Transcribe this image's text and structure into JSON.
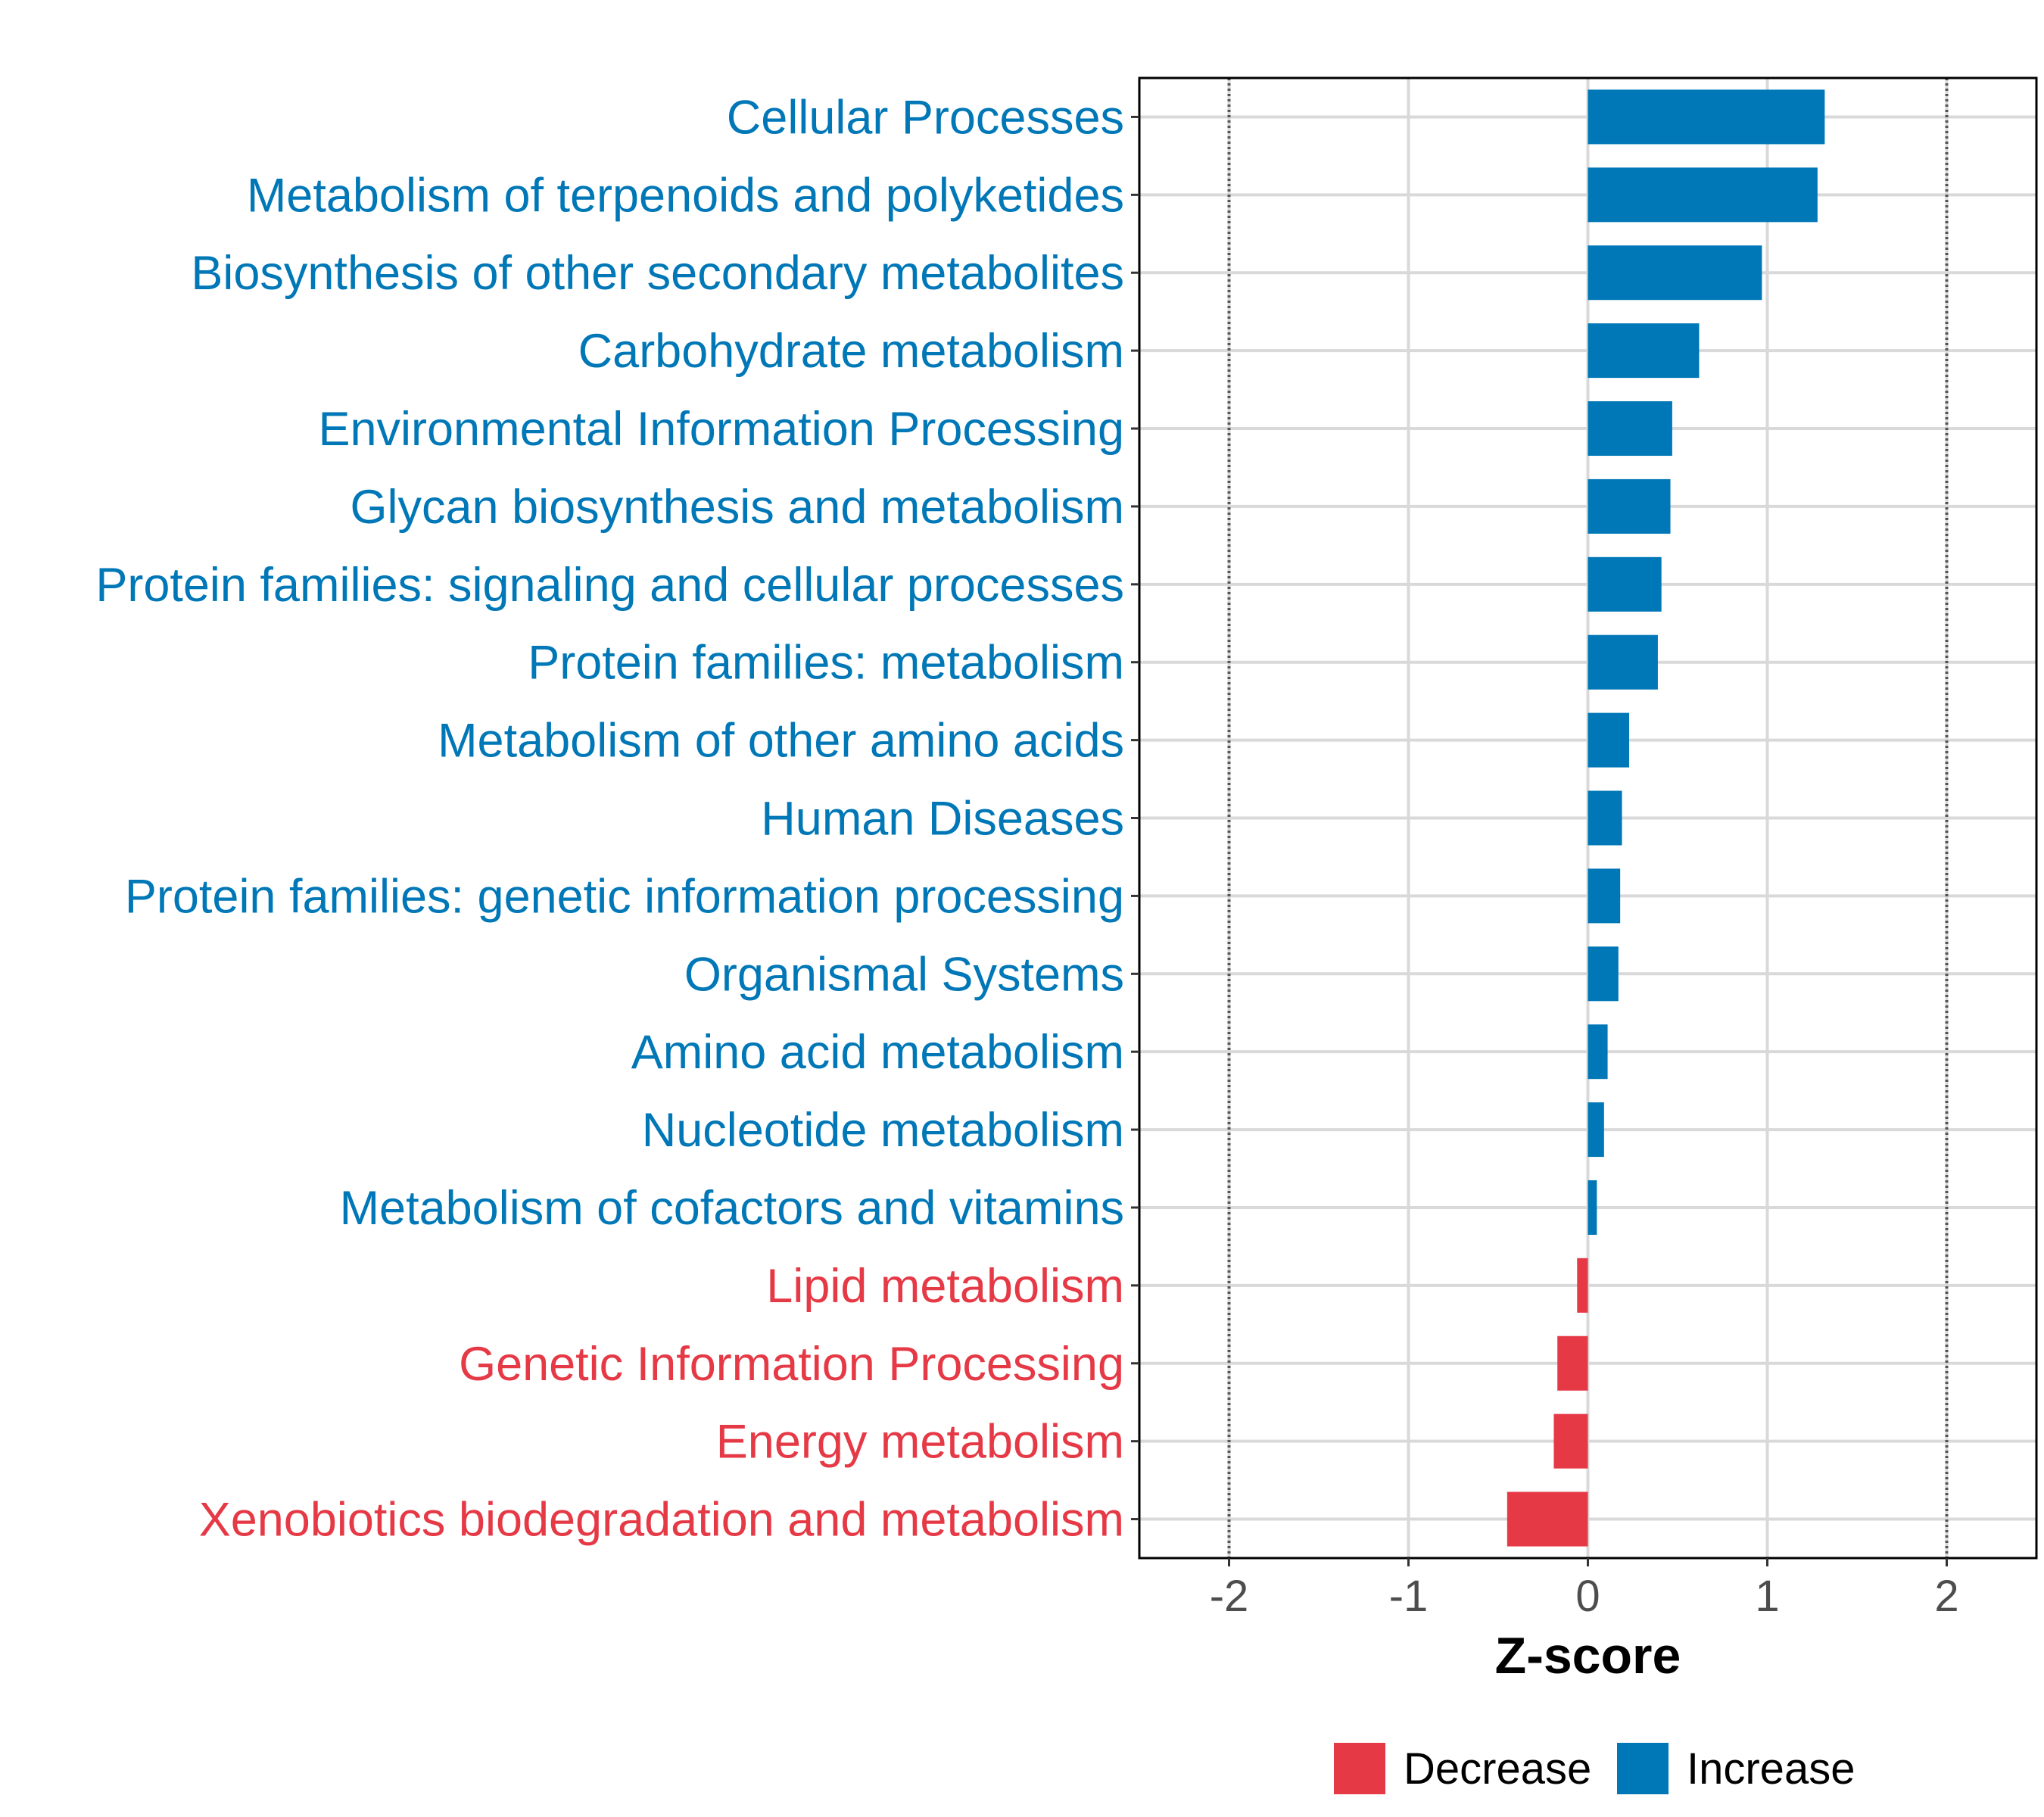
{
  "chart_data": {
    "type": "bar",
    "orientation": "horizontal",
    "xlabel": "Z-score",
    "xlim": [
      -2.5,
      2.5
    ],
    "xticks": [
      -2,
      -1,
      0,
      1,
      2
    ],
    "xtick_labels": [
      "-2",
      "-1",
      "0",
      "1",
      "2"
    ],
    "reference_lines": [
      -2,
      2
    ],
    "grid": true,
    "legend_position": "bottom",
    "colors": {
      "Decrease": "#e63946",
      "Increase": "#0077b6"
    },
    "legend": [
      {
        "name": "Decrease",
        "color": "#e63946"
      },
      {
        "name": "Increase",
        "color": "#0077b6"
      }
    ],
    "categories": [
      "Cellular Processes",
      "Metabolism of terpenoids and polyketides",
      "Biosynthesis of other secondary metabolites",
      "Carbohydrate metabolism",
      "Environmental Information Processing",
      "Glycan biosynthesis and metabolism",
      "Protein families: signaling and cellular processes",
      "Protein families: metabolism",
      "Metabolism of other amino acids",
      "Human Diseases",
      "Protein families: genetic information processing",
      "Organismal Systems",
      "Amino acid metabolism",
      "Nucleotide metabolism",
      "Metabolism of cofactors and vitamins",
      "Lipid metabolism",
      "Genetic Information Processing",
      "Energy metabolism",
      "Xenobiotics biodegradation and metabolism"
    ],
    "values": [
      1.32,
      1.28,
      0.97,
      0.62,
      0.47,
      0.46,
      0.41,
      0.39,
      0.23,
      0.19,
      0.18,
      0.17,
      0.11,
      0.09,
      0.05,
      -0.06,
      -0.17,
      -0.19,
      -0.45
    ],
    "groups": [
      "Increase",
      "Increase",
      "Increase",
      "Increase",
      "Increase",
      "Increase",
      "Increase",
      "Increase",
      "Increase",
      "Increase",
      "Increase",
      "Increase",
      "Increase",
      "Increase",
      "Increase",
      "Decrease",
      "Decrease",
      "Decrease",
      "Decrease"
    ]
  }
}
